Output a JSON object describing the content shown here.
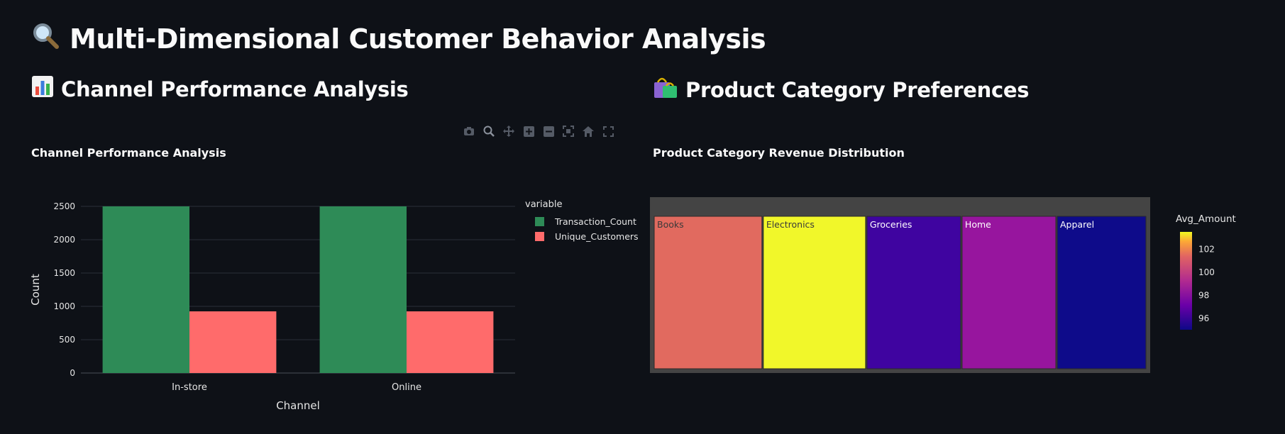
{
  "page": {
    "title": "Multi-Dimensional Customer Behavior Analysis",
    "title_icon": "magnifier-icon"
  },
  "sections": {
    "channel": {
      "heading": "Channel Performance Analysis",
      "icon": "bar-chart-icon"
    },
    "product": {
      "heading": "Product Category Preferences",
      "icon": "shopping-bags-icon"
    }
  },
  "modebar": [
    "camera-icon",
    "zoom-icon",
    "pan-icon",
    "zoom-in-icon",
    "zoom-out-icon",
    "autoscale-icon",
    "home-icon",
    "fullscreen-icon"
  ],
  "chart_data": [
    {
      "type": "bar",
      "title": "Channel Performance Analysis",
      "xlabel": "Channel",
      "ylabel": "Count",
      "categories": [
        "In-store",
        "Online"
      ],
      "series": [
        {
          "name": "Transaction_Count",
          "values": [
            2500,
            2500
          ],
          "color": "#2e8b57"
        },
        {
          "name": "Unique_Customers",
          "values": [
            925,
            925
          ],
          "color": "#ff6b6b"
        }
      ],
      "ylim": [
        0,
        2500
      ],
      "yticks": [
        0,
        500,
        1000,
        1500,
        2000,
        2500
      ],
      "legend_title": "variable",
      "legend_position": "right",
      "grid": true
    },
    {
      "type": "treemap",
      "title": "Product Category Revenue Distribution",
      "items": [
        {
          "label": "Books",
          "share": 0.218,
          "color": "#e16a5f",
          "text_color": "#3a3a3a"
        },
        {
          "label": "Electronics",
          "share": 0.207,
          "color": "#f1f72a",
          "text_color": "#3a3a3a"
        },
        {
          "label": "Groceries",
          "share": 0.19,
          "color": "#3f04a0",
          "text_color": "#ffffff"
        },
        {
          "label": "Home",
          "share": 0.19,
          "color": "#97159e",
          "text_color": "#ffffff"
        },
        {
          "label": "Apparel",
          "share": 0.18,
          "color": "#0e0b8a",
          "text_color": "#ffffff"
        }
      ],
      "colorbar": {
        "title": "Avg_Amount",
        "ticks": [
          96,
          98,
          100,
          102
        ],
        "range": [
          95,
          103.5
        ]
      }
    }
  ]
}
